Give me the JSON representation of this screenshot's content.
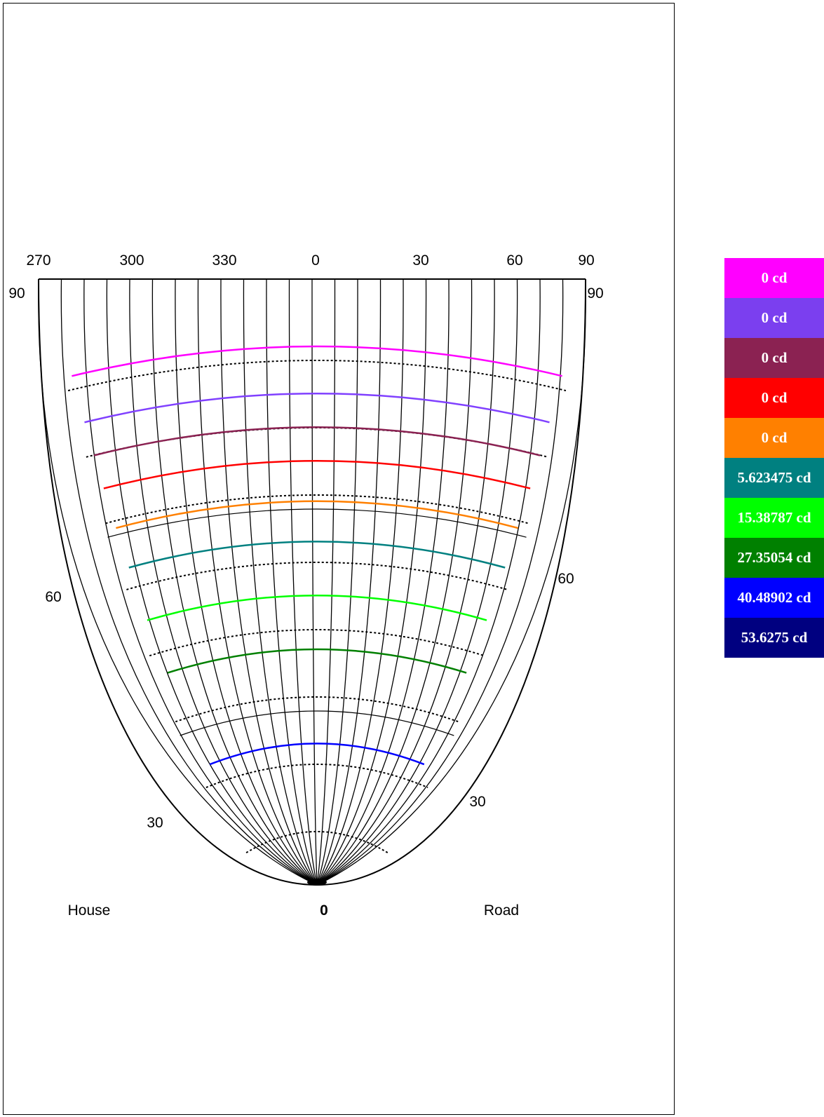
{
  "chart_data": {
    "type": "isocandela",
    "top_axis_labels": [
      "270",
      "300",
      "330",
      "0",
      "30",
      "60",
      "90"
    ],
    "angle_labels": {
      "left_top": "90",
      "right_top": "90",
      "left_60": "60",
      "right_60": "60",
      "left_30": "30",
      "right_30": "30",
      "bottom": "0"
    },
    "side_labels": {
      "left": "House",
      "right": "Road"
    },
    "contours": [
      {
        "color": "#ff00ff",
        "lateral_angle": 80
      },
      {
        "color": "#8040ff",
        "lateral_angle": 73
      },
      {
        "color": "#8b2252",
        "lateral_angle": 68
      },
      {
        "color": "#ff0000",
        "lateral_angle": 63
      },
      {
        "color": "#ff8000",
        "lateral_angle": 57
      },
      {
        "color": "#008080",
        "lateral_angle": 51
      },
      {
        "color": "#00ff00",
        "lateral_angle": 43
      },
      {
        "color": "#008000",
        "lateral_angle": 35
      },
      {
        "color": "#0000ff",
        "lateral_angle": 21
      }
    ],
    "legend": [
      {
        "label": "0 cd",
        "color": "#ff00ff"
      },
      {
        "label": "0 cd",
        "color": "#7b3fef"
      },
      {
        "label": "0 cd",
        "color": "#8b2252"
      },
      {
        "label": "0 cd",
        "color": "#ff0000"
      },
      {
        "label": "0 cd",
        "color": "#ff8000"
      },
      {
        "label": "5.623475 cd",
        "color": "#008080"
      },
      {
        "label": "15.38787 cd",
        "color": "#00ff00"
      },
      {
        "label": "27.35054 cd",
        "color": "#008000"
      },
      {
        "label": "40.48902 cd",
        "color": "#0000ff"
      },
      {
        "label": "53.6275 cd",
        "color": "#000080"
      }
    ]
  }
}
